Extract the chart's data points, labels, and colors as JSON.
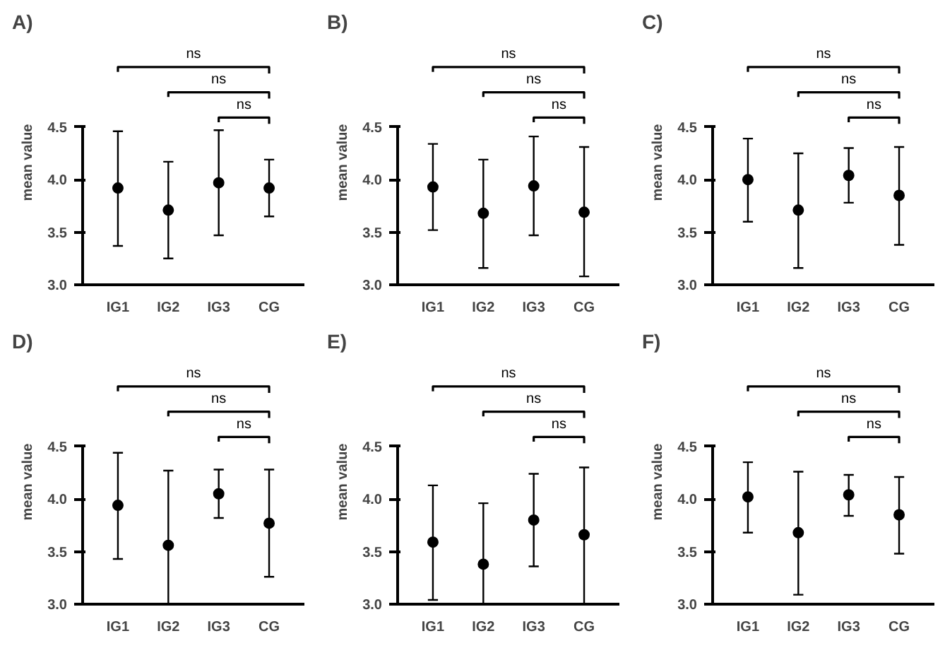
{
  "chart_data": [
    {
      "type": "scatter",
      "title": "A)",
      "ylabel": "mean value",
      "categories": [
        "IG1",
        "IG2",
        "IG3",
        "CG"
      ],
      "values": [
        3.92,
        3.71,
        3.97,
        3.92
      ],
      "errors": [
        [
          3.37,
          4.46
        ],
        [
          3.25,
          4.17
        ],
        [
          3.47,
          4.47
        ],
        [
          3.65,
          4.19
        ]
      ],
      "color": "#000000",
      "marker": "circle",
      "ylim": [
        3.0,
        4.5
      ],
      "yticks": [
        {
          "value": 3.0,
          "label": "3.0"
        },
        {
          "value": 3.5,
          "label": "3.5"
        },
        {
          "value": 4.0,
          "label": "4.0"
        },
        {
          "value": 4.5,
          "label": "4.5"
        }
      ],
      "annotations": [
        "ns",
        "ns",
        "ns"
      ]
    },
    {
      "type": "scatter",
      "title": "B)",
      "ylabel": "mean value",
      "categories": [
        "IG1",
        "IG2",
        "IG3",
        "CG"
      ],
      "values": [
        3.93,
        3.68,
        3.94,
        3.69
      ],
      "errors": [
        [
          3.52,
          4.34
        ],
        [
          3.16,
          4.19
        ],
        [
          3.47,
          4.41
        ],
        [
          3.08,
          4.31
        ]
      ],
      "color": "#000000",
      "marker": "circle",
      "ylim": [
        3.0,
        4.5
      ],
      "yticks": [
        {
          "value": 3.0,
          "label": "3.0"
        },
        {
          "value": 3.5,
          "label": "3.5"
        },
        {
          "value": 4.0,
          "label": "4.0"
        },
        {
          "value": 4.5,
          "label": "4.5"
        }
      ],
      "annotations": [
        "ns",
        "ns",
        "ns"
      ]
    },
    {
      "type": "scatter",
      "title": "C)",
      "ylabel": "mean value",
      "categories": [
        "IG1",
        "IG2",
        "IG3",
        "CG"
      ],
      "values": [
        4.0,
        3.71,
        4.04,
        3.85
      ],
      "errors": [
        [
          3.6,
          4.39
        ],
        [
          3.16,
          4.25
        ],
        [
          3.78,
          4.3
        ],
        [
          3.38,
          4.31
        ]
      ],
      "color": "#000000",
      "marker": "circle",
      "ylim": [
        3.0,
        4.5
      ],
      "yticks": [
        {
          "value": 3.0,
          "label": "3.0"
        },
        {
          "value": 3.5,
          "label": "3.5"
        },
        {
          "value": 4.0,
          "label": "4.0"
        },
        {
          "value": 4.5,
          "label": "4.5"
        }
      ],
      "annotations": [
        "ns",
        "ns",
        "ns"
      ]
    },
    {
      "type": "scatter",
      "title": "D)",
      "ylabel": "mean value",
      "categories": [
        "IG1",
        "IG2",
        "IG3",
        "CG"
      ],
      "values": [
        3.94,
        3.56,
        4.05,
        3.77
      ],
      "errors": [
        [
          3.43,
          4.44
        ],
        [
          3.0,
          4.27
        ],
        [
          3.82,
          4.28
        ],
        [
          3.26,
          4.28
        ]
      ],
      "color": "#000000",
      "marker": "circle",
      "ylim": [
        3.0,
        4.5
      ],
      "yticks": [
        {
          "value": 3.0,
          "label": "3.0"
        },
        {
          "value": 3.5,
          "label": "3.5"
        },
        {
          "value": 4.0,
          "label": "4.0"
        },
        {
          "value": 4.5,
          "label": "4.5"
        }
      ],
      "annotations": [
        "ns",
        "ns",
        "ns"
      ]
    },
    {
      "type": "scatter",
      "title": "E)",
      "ylabel": "mean value",
      "categories": [
        "IG1",
        "IG2",
        "IG3",
        "CG"
      ],
      "values": [
        3.59,
        3.38,
        3.8,
        3.66
      ],
      "errors": [
        [
          3.04,
          4.13
        ],
        [
          3.0,
          3.96
        ],
        [
          3.36,
          4.24
        ],
        [
          3.0,
          4.3
        ]
      ],
      "color": "#000000",
      "marker": "circle",
      "ylim": [
        3.0,
        4.5
      ],
      "yticks": [
        {
          "value": 3.0,
          "label": "3.0"
        },
        {
          "value": 3.5,
          "label": "3.5"
        },
        {
          "value": 4.0,
          "label": "4.0"
        },
        {
          "value": 4.5,
          "label": "4.5"
        }
      ],
      "annotations": [
        "ns",
        "ns",
        "ns"
      ]
    },
    {
      "type": "scatter",
      "title": "F)",
      "ylabel": "mean value",
      "categories": [
        "IG1",
        "IG2",
        "IG3",
        "CG"
      ],
      "values": [
        4.02,
        3.68,
        4.04,
        3.85
      ],
      "errors": [
        [
          3.68,
          4.35
        ],
        [
          3.09,
          4.26
        ],
        [
          3.84,
          4.23
        ],
        [
          3.48,
          4.21
        ]
      ],
      "color": "#000000",
      "marker": "circle",
      "ylim": [
        3.0,
        4.5
      ],
      "yticks": [
        {
          "value": 3.0,
          "label": "3.0"
        },
        {
          "value": 3.5,
          "label": "3.5"
        },
        {
          "value": 4.0,
          "label": "4.0"
        },
        {
          "value": 4.5,
          "label": "4.5"
        }
      ],
      "annotations": [
        "ns",
        "ns",
        "ns"
      ]
    }
  ]
}
